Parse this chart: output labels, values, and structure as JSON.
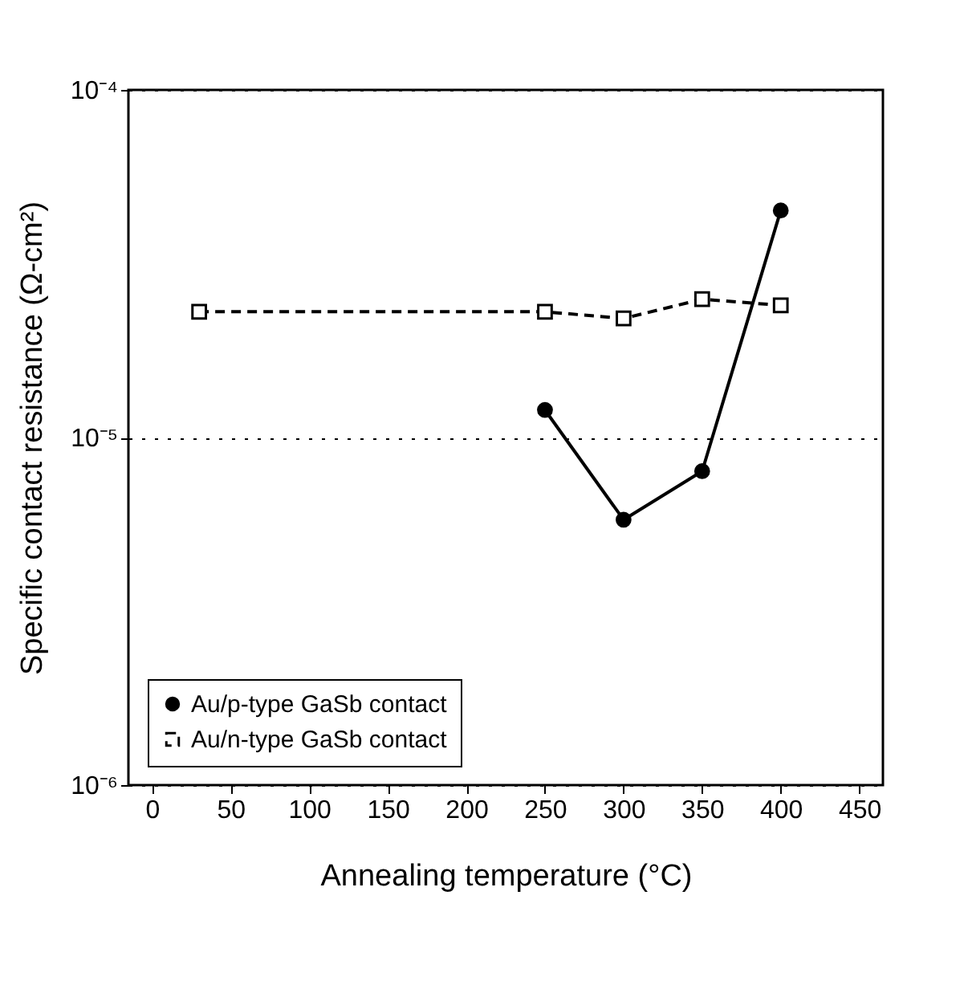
{
  "chart_data": {
    "type": "line",
    "xlabel": "Annealing temperature (°C)",
    "ylabel": "Specific contact resistance (Ω-cm²)",
    "xlim": [
      -15,
      465
    ],
    "xticks": [
      0,
      50,
      100,
      150,
      200,
      250,
      300,
      350,
      400,
      450
    ],
    "ylim": [
      1e-06,
      0.0001
    ],
    "yticks": [
      {
        "value": 1e-06,
        "label": "10⁻⁶"
      },
      {
        "value": 1e-05,
        "label": "10⁻⁵"
      },
      {
        "value": 0.0001,
        "label": "10⁻⁴"
      }
    ],
    "log": "y",
    "grid": "y",
    "legend": "bottom left",
    "series": [
      {
        "name": "Au/p-type GaSb contact",
        "color": "#000000",
        "marker": "circle",
        "line_style": "solid",
        "x": [
          250,
          300,
          350,
          400
        ],
        "values": [
          1.2e-05,
          5.8e-06,
          8e-06,
          4.5e-05
        ]
      },
      {
        "name": "Au/n-type GaSb contact",
        "color": "#000000",
        "marker": "square",
        "line_style": "dashed",
        "x": [
          30,
          250,
          300,
          350,
          400
        ],
        "values": [
          2.3e-05,
          2.3e-05,
          2.2e-05,
          2.5e-05,
          2.4e-05
        ]
      }
    ]
  }
}
